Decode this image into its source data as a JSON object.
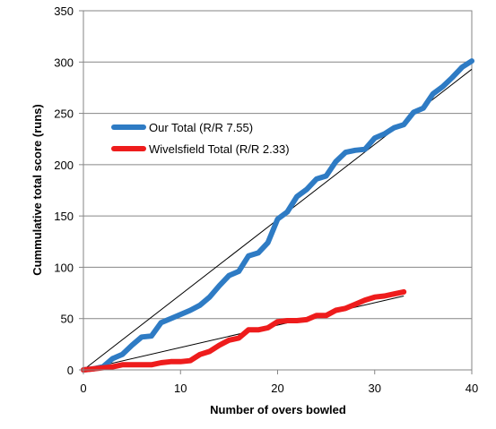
{
  "chart_data": {
    "type": "line",
    "title": "",
    "xlabel": "Number of overs bowled",
    "ylabel": "Cummulative total score (runs)",
    "xlim": [
      0,
      40
    ],
    "ylim": [
      0,
      350
    ],
    "x_ticks": [
      0,
      10,
      20,
      30,
      40
    ],
    "y_ticks": [
      0,
      50,
      100,
      150,
      200,
      250,
      300,
      350
    ],
    "grid": "horizontal",
    "legend_position": "left-middle",
    "series": [
      {
        "name": "Our Total (R/R 7.55)",
        "color": "#2e7bc4",
        "x": [
          0,
          1,
          2,
          2.5,
          3,
          4,
          5,
          6,
          7,
          8,
          9,
          10,
          11,
          12,
          13,
          14,
          15,
          16,
          17,
          18,
          19,
          20,
          21,
          22,
          23,
          24,
          25,
          26,
          27,
          28,
          29,
          30,
          31,
          32,
          33,
          34,
          35,
          36,
          37,
          38,
          39,
          40
        ],
        "y": [
          0,
          1,
          3,
          7,
          11,
          15,
          24,
          32,
          33,
          46,
          50,
          54,
          58,
          63,
          71,
          82,
          92,
          96,
          111,
          114,
          124,
          147,
          154,
          169,
          176,
          186,
          189,
          203,
          212,
          214,
          215,
          226,
          230,
          236,
          239,
          251,
          255,
          269,
          276,
          285,
          295,
          301
        ]
      },
      {
        "name": "Wivelsfield Total (R/R 2.33)",
        "color": "#ee1c1c",
        "x": [
          0,
          1,
          2,
          3,
          4,
          5,
          6,
          7,
          8,
          9,
          10,
          11,
          12,
          13,
          14,
          15,
          16,
          17,
          18,
          19,
          20,
          21,
          22,
          23,
          24,
          25,
          26,
          27,
          28,
          29,
          30,
          31,
          32,
          33
        ],
        "y": [
          0,
          1,
          2,
          3,
          5,
          5,
          5,
          5,
          7,
          8,
          8,
          9,
          15,
          18,
          24,
          29,
          31,
          39,
          39,
          41,
          47,
          48,
          48,
          49,
          53,
          53,
          58,
          60,
          64,
          68,
          71,
          72,
          74,
          76
        ]
      }
    ],
    "trendlines": [
      {
        "color": "#000000",
        "x": [
          0,
          40
        ],
        "y": [
          0,
          293
        ]
      },
      {
        "color": "#000000",
        "x": [
          0,
          33
        ],
        "y": [
          0,
          72
        ]
      }
    ]
  }
}
